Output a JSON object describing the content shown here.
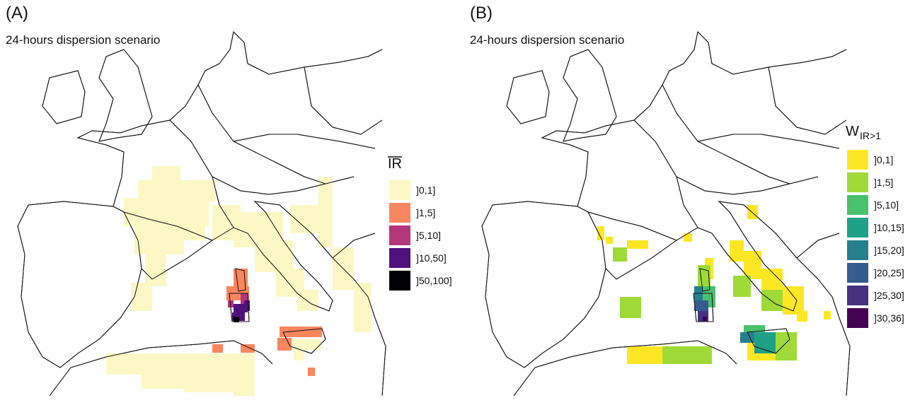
{
  "panels": [
    {
      "label": "(A)",
      "subtitle": "24-hours dispersion scenario",
      "legend": {
        "title": "IR",
        "overline": true,
        "items": [
          {
            "label": "]0,1]",
            "color": "#fbf8c6"
          },
          {
            "label": "]1,5]",
            "color": "#f8865f"
          },
          {
            "label": "]5,10]",
            "color": "#b4367b"
          },
          {
            "label": "]10,50]",
            "color": "#4f127b"
          },
          {
            "label": "]50,100]",
            "color": "#000004"
          }
        ]
      }
    },
    {
      "label": "(B)",
      "subtitle": "24-hours dispersion scenario",
      "legend": {
        "title": "W",
        "subscript": "IR>1",
        "items": [
          {
            "label": "]0,1]",
            "color": "#fde725"
          },
          {
            "label": "]1,5]",
            "color": "#a0da39"
          },
          {
            "label": "]5,10]",
            "color": "#4ac16d"
          },
          {
            "label": "]10,15]",
            "color": "#1fa187"
          },
          {
            "label": "]15,20]",
            "color": "#277f8e"
          },
          {
            "label": "]20,25]",
            "color": "#365c8d"
          },
          {
            "label": "]25,30]",
            "color": "#46327e"
          },
          {
            "label": "]30,36]",
            "color": "#440154"
          }
        ]
      }
    }
  ]
}
